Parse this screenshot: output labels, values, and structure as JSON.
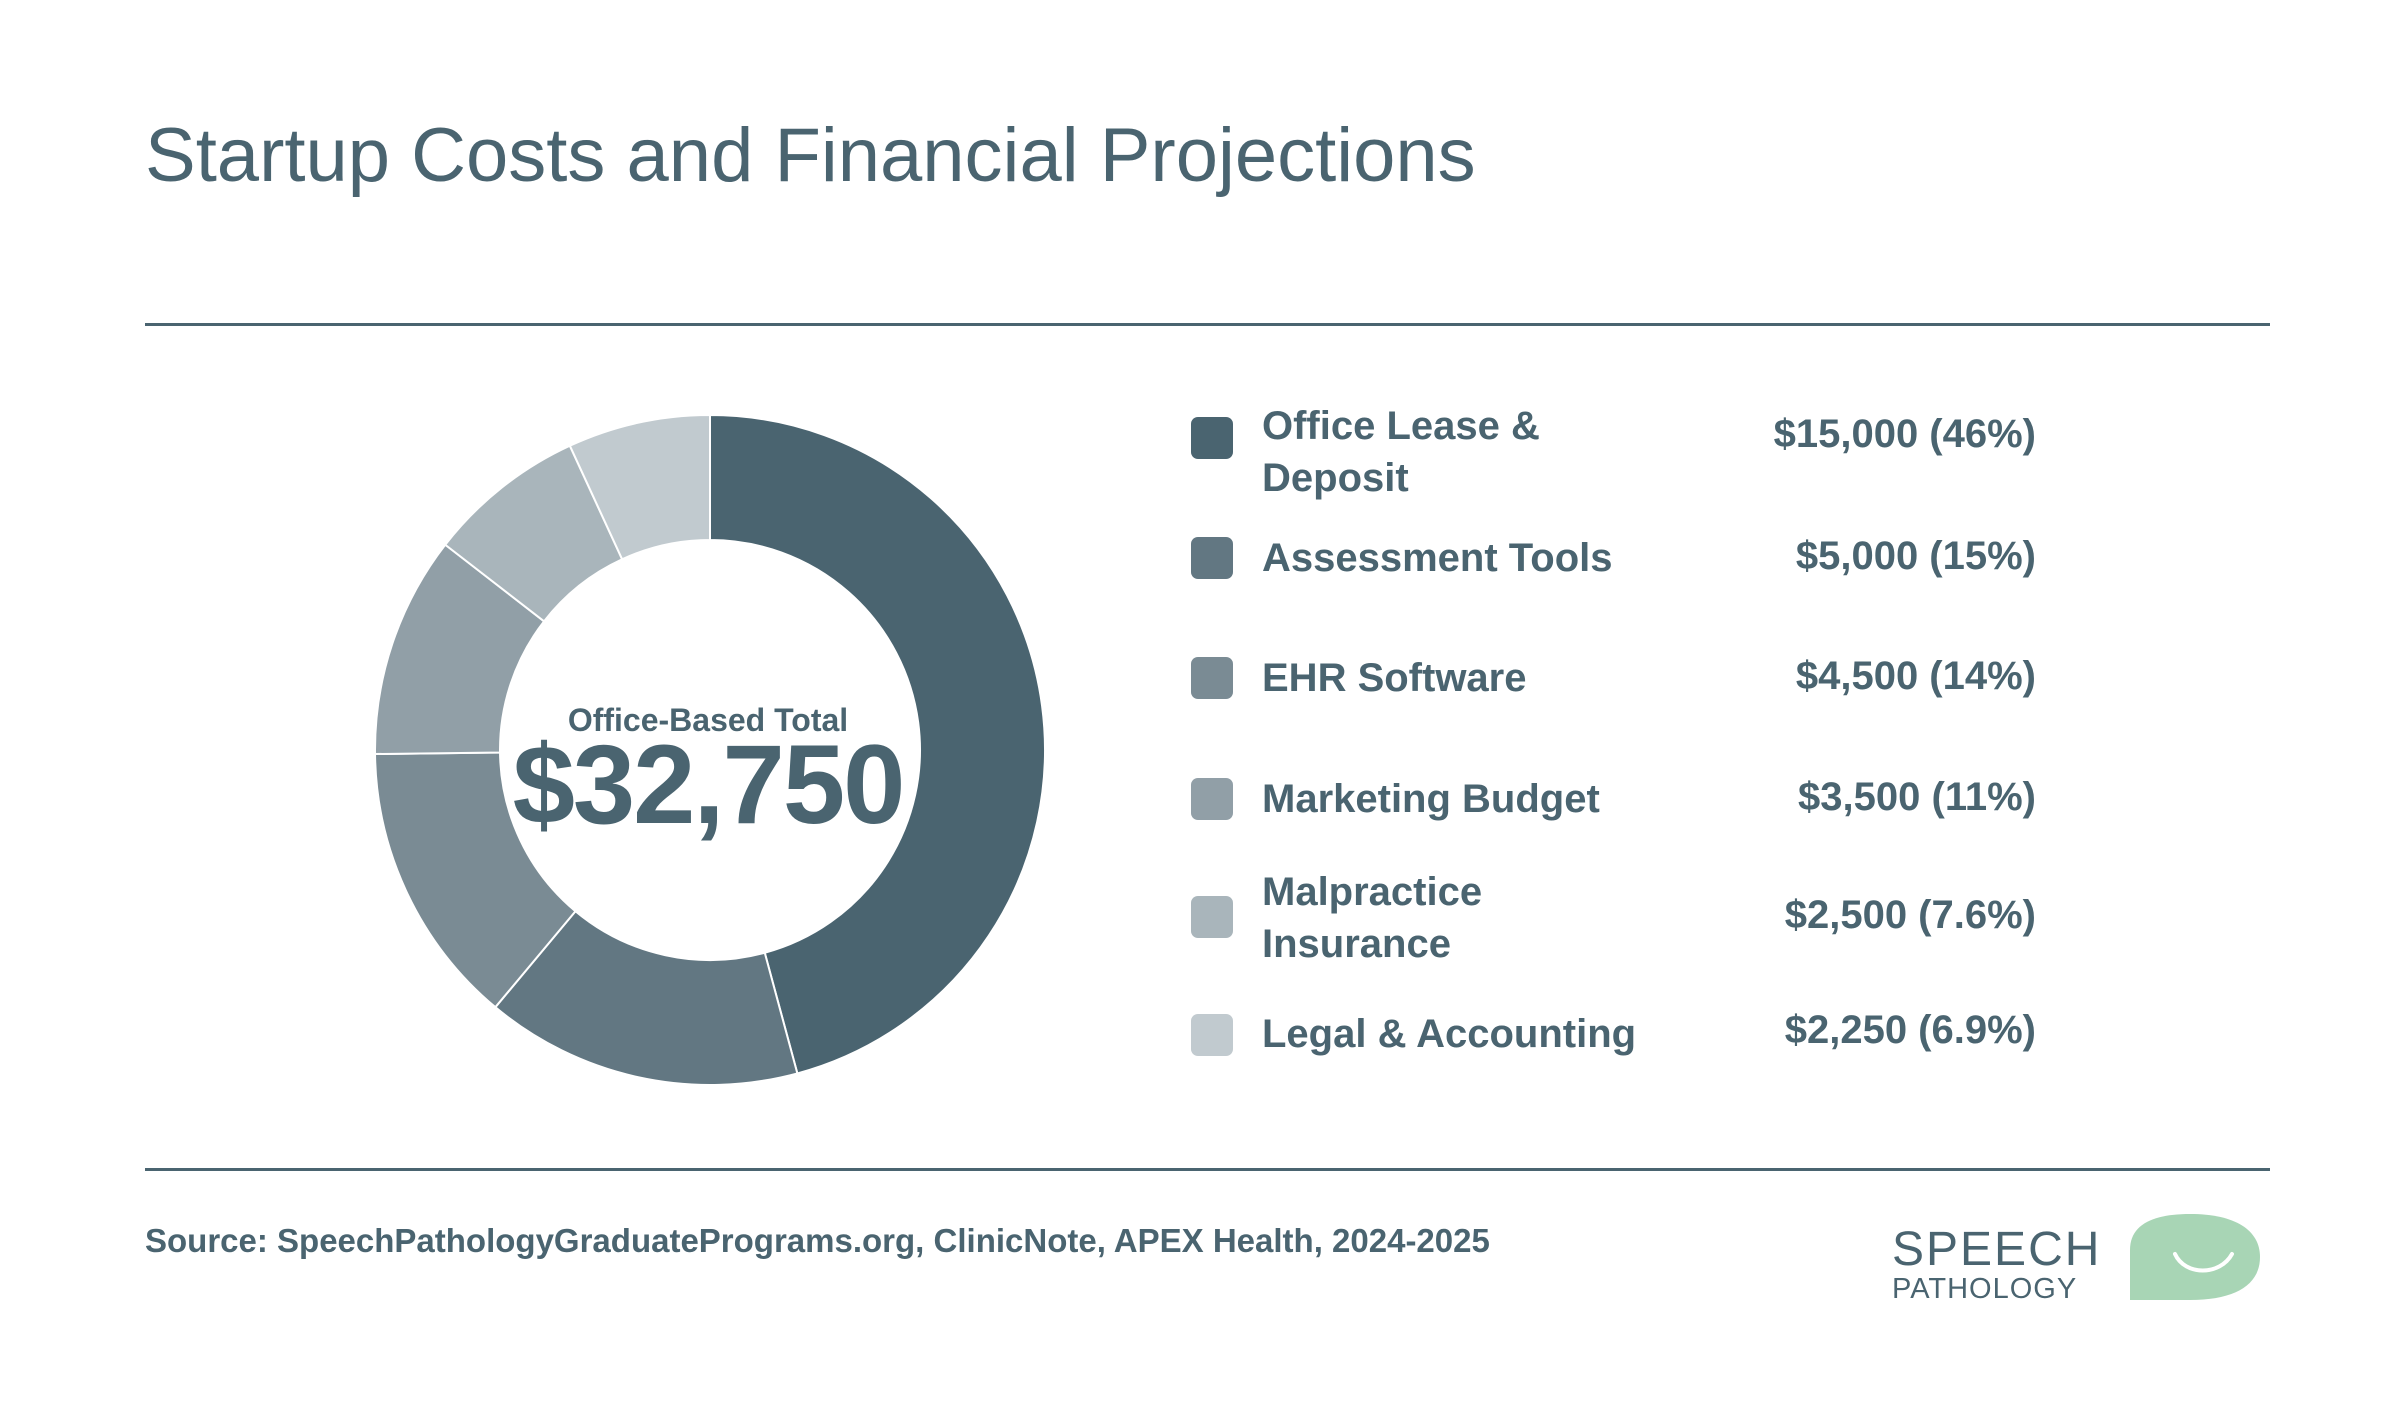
{
  "page": {
    "title": "Startup Costs and Financial Projections",
    "source": "Source: SpeechPathologyGraduatePrograms.org, ClinicNote, APEX Health, 2024-2025"
  },
  "logo": {
    "line1": "SPEECH",
    "line2": "PATHOLOGY",
    "text_color": "#4a6470",
    "bubble_color": "#a8d5b5"
  },
  "chart_data": {
    "type": "pie",
    "variant": "donut",
    "title": "Startup Costs and Financial Projections",
    "center_label": "Office-Based Total",
    "center_value": "$32,750",
    "total": 32750,
    "legend_position": "right",
    "categories": [
      "Office Lease & Deposit",
      "Assessment Tools",
      "EHR Software",
      "Marketing Budget",
      "Malpractice Insurance",
      "Legal & Accounting"
    ],
    "values": [
      15000,
      5000,
      4500,
      3500,
      2500,
      2250
    ],
    "value_labels": [
      "$15,000 (46%)",
      "$5,000 (15%)",
      "$4,500 (14%)",
      "$3,500 (11%)",
      "$2,500 (7.6%)",
      "$2,250 (6.9%)"
    ],
    "colors": [
      "#4a6470",
      "#627782",
      "#7a8b94",
      "#919fa7",
      "#a9b5bb",
      "#c1cacf"
    ]
  }
}
